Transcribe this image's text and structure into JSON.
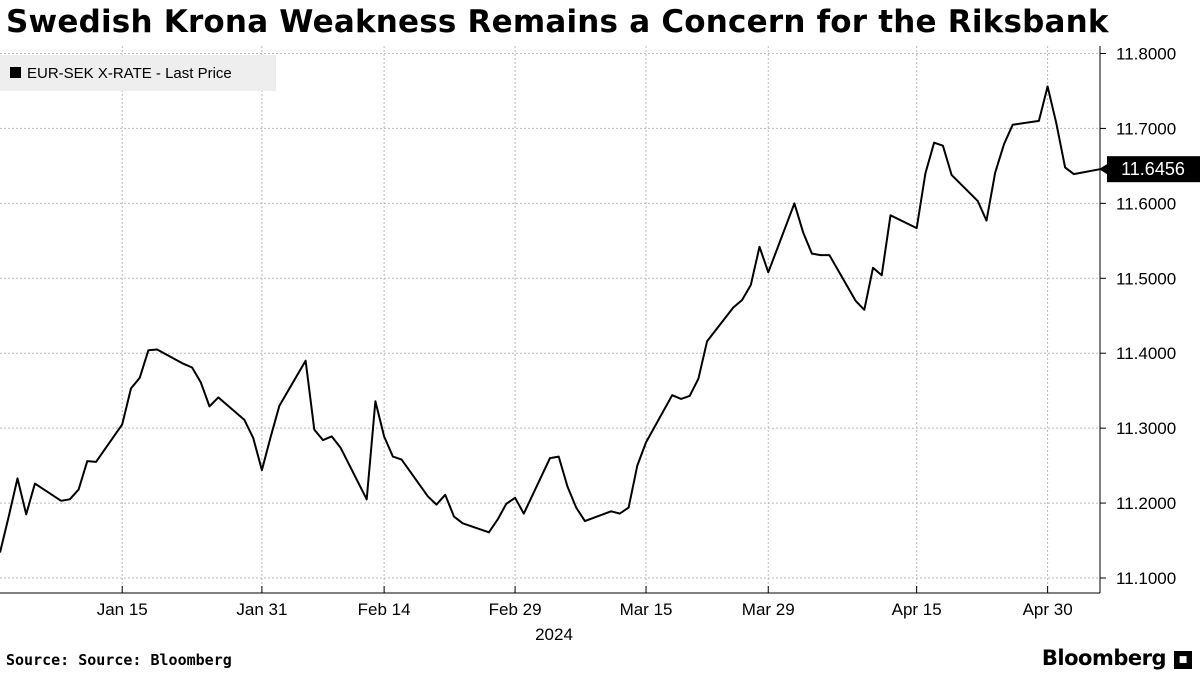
{
  "header": {
    "title": "Swedish Krona Weakness Remains a Concern for the Riksbank"
  },
  "footer": {
    "source": "Source: Source: Bloomberg",
    "brand": "Bloomberg"
  },
  "colors": {
    "line": "#000000",
    "grid": "#b8b8b8",
    "legend_bg": "#eeeeee",
    "background": "#ffffff"
  },
  "chart_data": {
    "type": "line",
    "title": "Swedish Krona Weakness Remains a Concern for the Riksbank",
    "legend": {
      "entries": [
        "EUR-SEK X-RATE - Last Price"
      ],
      "placement": "top-left"
    },
    "last_value_label": "11.6456",
    "year_label": "2024",
    "x_tick_labels": [
      "Jan 15",
      "Jan 31",
      "Feb 14",
      "Feb 29",
      "Mar 15",
      "Mar 29",
      "Apr 15",
      "Apr 30"
    ],
    "x_tick_dates": [
      "2024-01-15",
      "2024-01-31",
      "2024-02-14",
      "2024-02-29",
      "2024-03-15",
      "2024-03-29",
      "2024-04-15",
      "2024-04-30"
    ],
    "y_tick_labels": [
      "11.1000",
      "11.2000",
      "11.3000",
      "11.4000",
      "11.5000",
      "11.6000",
      "11.7000",
      "11.8000"
    ],
    "y_ticks": [
      11.1,
      11.2,
      11.3,
      11.4,
      11.5,
      11.6,
      11.7,
      11.8
    ],
    "ylim": [
      11.08,
      11.81
    ],
    "xlim": [
      "2024-01-01",
      "2024-05-06"
    ],
    "y_axis_position": "right",
    "grid": true,
    "series": [
      {
        "name": "EUR-SEK X-RATE - Last Price",
        "x": [
          "2024-01-01",
          "2024-01-02",
          "2024-01-03",
          "2024-01-04",
          "2024-01-05",
          "2024-01-08",
          "2024-01-09",
          "2024-01-10",
          "2024-01-11",
          "2024-01-12",
          "2024-01-15",
          "2024-01-16",
          "2024-01-17",
          "2024-01-18",
          "2024-01-19",
          "2024-01-22",
          "2024-01-23",
          "2024-01-24",
          "2024-01-25",
          "2024-01-26",
          "2024-01-29",
          "2024-01-30",
          "2024-01-31",
          "2024-02-01",
          "2024-02-02",
          "2024-02-05",
          "2024-02-06",
          "2024-02-07",
          "2024-02-08",
          "2024-02-09",
          "2024-02-12",
          "2024-02-13",
          "2024-02-14",
          "2024-02-15",
          "2024-02-16",
          "2024-02-19",
          "2024-02-20",
          "2024-02-21",
          "2024-02-22",
          "2024-02-23",
          "2024-02-26",
          "2024-02-27",
          "2024-02-28",
          "2024-02-29",
          "2024-03-01",
          "2024-03-04",
          "2024-03-05",
          "2024-03-06",
          "2024-03-07",
          "2024-03-08",
          "2024-03-11",
          "2024-03-12",
          "2024-03-13",
          "2024-03-14",
          "2024-03-15",
          "2024-03-18",
          "2024-03-19",
          "2024-03-20",
          "2024-03-21",
          "2024-03-22",
          "2024-03-25",
          "2024-03-26",
          "2024-03-27",
          "2024-03-28",
          "2024-03-29",
          "2024-04-01",
          "2024-04-02",
          "2024-04-03",
          "2024-04-04",
          "2024-04-05",
          "2024-04-08",
          "2024-04-09",
          "2024-04-10",
          "2024-04-11",
          "2024-04-12",
          "2024-04-15",
          "2024-04-16",
          "2024-04-17",
          "2024-04-18",
          "2024-04-19",
          "2024-04-22",
          "2024-04-23",
          "2024-04-24",
          "2024-04-25",
          "2024-04-26",
          "2024-04-29",
          "2024-04-30",
          "2024-05-01",
          "2024-05-02",
          "2024-05-03",
          "2024-05-06"
        ],
        "values": [
          11.134,
          11.182,
          11.233,
          11.185,
          11.226,
          11.203,
          11.205,
          11.218,
          11.256,
          11.255,
          11.305,
          11.353,
          11.367,
          11.404,
          11.405,
          11.386,
          11.381,
          11.361,
          11.329,
          11.341,
          11.311,
          11.287,
          11.244,
          11.288,
          11.33,
          11.39,
          11.298,
          11.284,
          11.289,
          11.274,
          11.205,
          11.336,
          11.289,
          11.262,
          11.258,
          11.209,
          11.198,
          11.211,
          11.182,
          11.173,
          11.161,
          11.178,
          11.199,
          11.207,
          11.186,
          11.26,
          11.262,
          11.222,
          11.194,
          11.176,
          11.189,
          11.186,
          11.194,
          11.25,
          11.281,
          11.344,
          11.339,
          11.343,
          11.366,
          11.416,
          11.461,
          11.471,
          11.491,
          11.542,
          11.508,
          11.6,
          11.561,
          11.533,
          11.531,
          11.531,
          11.47,
          11.458,
          11.514,
          11.504,
          11.584,
          11.567,
          11.64,
          11.681,
          11.677,
          11.638,
          11.603,
          11.577,
          11.641,
          11.679,
          11.705,
          11.71,
          11.756,
          11.707,
          11.648,
          11.639,
          11.6456
        ]
      }
    ]
  }
}
